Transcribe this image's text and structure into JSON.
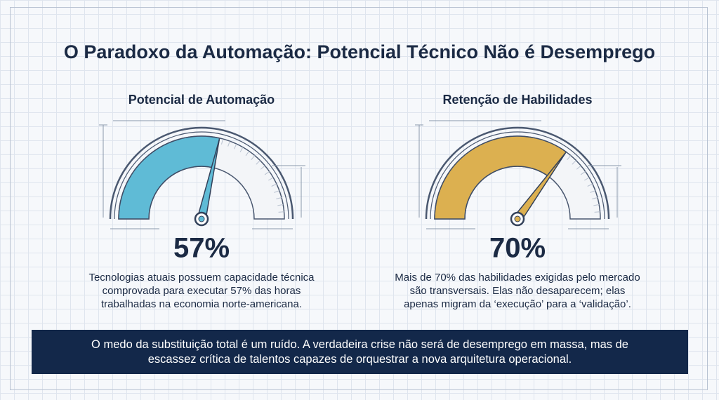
{
  "title": "O Paradoxo da Automação: Potencial Técnico Não é Desemprego",
  "gauges": [
    {
      "type": "gauge",
      "title": "Potencial de Automação",
      "value": 57,
      "value_label": "57%",
      "ylim": [
        0,
        100
      ],
      "color": "#5fbbd6",
      "description": "Tecnologias atuais possuem capacidade técnica comprovada para executar 57% das horas trabalhadas na economia norte-americana."
    },
    {
      "type": "gauge",
      "title": "Retenção de Habilidades",
      "value": 70,
      "value_label": "70%",
      "ylim": [
        0,
        100
      ],
      "color": "#dcb050",
      "description": "Mais de 70% das habilidades exigidas pelo mercado são transversais. Elas não desaparecem; elas apenas migram da ‘execução’ para a ‘validação’."
    }
  ],
  "footer": "O medo da substituição total é um ruído. A verdadeira crise não será de desemprego em massa, mas de escassez crítica de talentos capazes de orquestrar a nova arquitetura operacional."
}
